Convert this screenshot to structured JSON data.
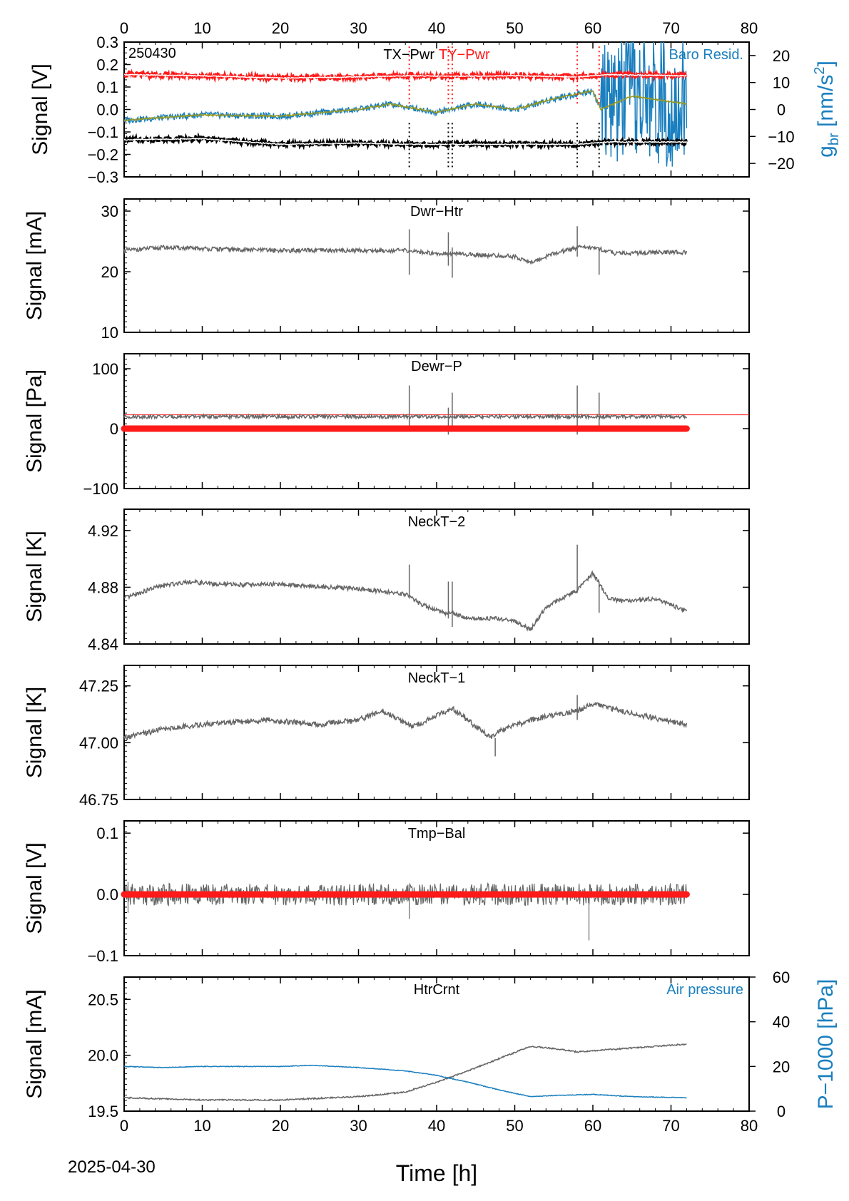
{
  "date_label": "2025-04-30",
  "xlabel": "Time [h]",
  "x_ticks": [
    0,
    10,
    20,
    30,
    40,
    50,
    60,
    70,
    80
  ],
  "colors": {
    "grey": "#666666",
    "red": "#ff1a1a",
    "blue": "#1a7fbf",
    "black": "#000000",
    "olive": "#9a9a20",
    "white": "#ffffff"
  },
  "chart_data": [
    {
      "type": "line",
      "title": "TX−Pwr TY−Pwr",
      "title_parts": [
        "TX−Pwr",
        "TY−Pwr"
      ],
      "corner_label": "250430",
      "right_legend": "Baro Resid.",
      "ylabel": "Signal [V]",
      "ylim": [
        -0.3,
        0.3
      ],
      "y_ticks": [
        "0.3",
        "0.2",
        "0.1",
        "0.0",
        "−0.1",
        "−0.2",
        "−0.3"
      ],
      "y2label": "g_br [nm/s^2]",
      "y2label_parts": [
        "g",
        "br",
        " [nm/s",
        "2",
        "]"
      ],
      "y2lim": [
        -25,
        25
      ],
      "y2_ticks": [
        "20",
        "10",
        "0",
        "−10",
        "−20"
      ],
      "xlim": [
        0,
        80
      ],
      "series": [
        {
          "name": "TX−Pwr",
          "x": [
            0,
            10,
            20,
            30,
            36.5,
            42,
            50,
            58,
            62,
            72
          ],
          "y": [
            -0.135,
            -0.13,
            -0.155,
            -0.15,
            -0.155,
            -0.155,
            -0.155,
            -0.155,
            -0.145,
            -0.145
          ]
        },
        {
          "name": "TY−Pwr",
          "x": [
            0,
            10,
            20,
            30,
            36.5,
            42,
            50,
            58,
            62,
            72
          ],
          "y": [
            0.155,
            0.15,
            0.14,
            0.145,
            0.15,
            0.148,
            0.15,
            0.145,
            0.155,
            0.15
          ]
        },
        {
          "name": "Baro Resid.",
          "x": [
            0,
            10,
            20,
            30,
            34,
            40,
            45,
            50,
            55,
            60,
            61,
            65,
            72
          ],
          "y": [
            -4,
            -2,
            -2.5,
            0,
            2,
            -1,
            2,
            0,
            4,
            7,
            0,
            5,
            2
          ]
        }
      ],
      "spikes_x": [
        36.5,
        41.5,
        42,
        58,
        60.8
      ]
    },
    {
      "type": "line",
      "title": "Dwr−Htr",
      "ylabel": "Signal [mA]",
      "ylim": [
        10,
        32
      ],
      "y_ticks": [
        "30",
        "20",
        "10"
      ],
      "xlim": [
        0,
        80
      ],
      "series": [
        {
          "x": [
            0,
            5,
            10,
            20,
            30,
            36,
            40,
            41.5,
            45,
            50,
            52,
            55,
            58,
            60,
            63,
            68,
            72
          ],
          "y": [
            23.5,
            24,
            23.8,
            23.5,
            23.5,
            23.5,
            23,
            23,
            22.8,
            22.5,
            21.5,
            23,
            24,
            24,
            23,
            23.2,
            23.2
          ]
        }
      ]
    },
    {
      "type": "line",
      "title": "Dewr−P",
      "ylabel": "Signal [Pa]",
      "ylim": [
        -100,
        125
      ],
      "y_ticks": [
        "100",
        "0",
        "−100"
      ],
      "xlim": [
        0,
        80
      ],
      "series": [
        {
          "x": [
            0,
            72
          ],
          "y": [
            20,
            20
          ]
        }
      ],
      "ref_line": 23,
      "zero_band": 0
    },
    {
      "type": "line",
      "title": "NeckT−2",
      "ylabel": "Signal [K]",
      "ylim": [
        4.84,
        4.935
      ],
      "y_ticks": [
        "4.92",
        "4.88",
        "4.84"
      ],
      "xlim": [
        0,
        80
      ],
      "series": [
        {
          "x": [
            0,
            4,
            8,
            12,
            20,
            30,
            36,
            38,
            41,
            42,
            44,
            48,
            50,
            52,
            54,
            56,
            58,
            60,
            62,
            64,
            68,
            72
          ],
          "y": [
            4.872,
            4.88,
            4.884,
            4.882,
            4.882,
            4.879,
            4.875,
            4.868,
            4.862,
            4.862,
            4.858,
            4.858,
            4.856,
            4.85,
            4.866,
            4.872,
            4.878,
            4.89,
            4.872,
            4.87,
            4.872,
            4.863
          ]
        }
      ]
    },
    {
      "type": "line",
      "title": "NeckT−1",
      "ylabel": "Signal [K]",
      "ylim": [
        46.75,
        47.34
      ],
      "y_ticks": [
        "47.25",
        "47.00",
        "46.75"
      ],
      "xlim": [
        0,
        80
      ],
      "series": [
        {
          "x": [
            0,
            5,
            10,
            18,
            25,
            30,
            33,
            37,
            42,
            47,
            48,
            52,
            58,
            60,
            66,
            72
          ],
          "y": [
            47.02,
            47.06,
            47.08,
            47.1,
            47.08,
            47.1,
            47.14,
            47.07,
            47.15,
            47.02,
            47.05,
            47.1,
            47.14,
            47.17,
            47.12,
            47.08
          ]
        }
      ]
    },
    {
      "type": "line",
      "title": "Tmp−Bal",
      "ylabel": "Signal [V]",
      "ylim": [
        -0.1,
        0.12
      ],
      "y_ticks": [
        "0.1",
        "0.0",
        "−0.1"
      ],
      "xlim": [
        0,
        80
      ],
      "series": [
        {
          "x": [
            0,
            72
          ],
          "y": [
            0,
            0
          ]
        }
      ],
      "zero_band": 0
    },
    {
      "type": "line",
      "title": "HtrCrnt",
      "right_legend": "Air pressure",
      "ylabel": "Signal [mA]",
      "ylim": [
        19.5,
        20.7
      ],
      "y_ticks": [
        "20.5",
        "20.0",
        "19.5"
      ],
      "y2label": "P−1000 [hPa]",
      "y2lim": [
        0,
        60
      ],
      "y2_ticks": [
        "60",
        "40",
        "20",
        "0"
      ],
      "xlim": [
        0,
        80
      ],
      "series": [
        {
          "name": "HtrCrnt",
          "x": [
            0,
            10,
            20,
            30,
            36,
            40,
            44,
            48,
            52,
            55,
            58,
            62,
            66,
            72
          ],
          "y": [
            19.62,
            19.6,
            19.6,
            19.63,
            19.67,
            19.76,
            19.86,
            19.97,
            20.08,
            20.06,
            20.03,
            20.05,
            20.07,
            20.1
          ]
        },
        {
          "name": "Air pressure",
          "x": [
            0,
            5,
            10,
            20,
            24,
            30,
            36,
            40,
            44,
            48,
            52,
            55,
            60,
            65,
            72
          ],
          "y": [
            20,
            19.5,
            20,
            20,
            20.5,
            19.5,
            18,
            16,
            13,
            9.5,
            6.5,
            7,
            7.5,
            6.5,
            6
          ]
        }
      ]
    }
  ]
}
